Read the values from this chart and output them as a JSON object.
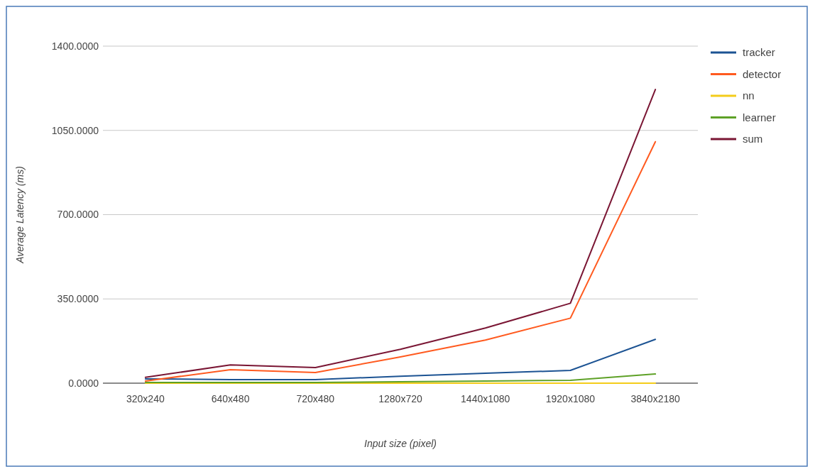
{
  "chart_data": {
    "type": "line",
    "xlabel": "Input size (pixel)",
    "ylabel": "Average Latency (ms)",
    "categories": [
      "320x240",
      "640x480",
      "720x480",
      "1280x720",
      "1440x1080",
      "1920x1080",
      "3840x2180"
    ],
    "series": [
      {
        "name": "tracker",
        "color": "#1c5393",
        "values": [
          18,
          15,
          15,
          29,
          41,
          53,
          182
        ]
      },
      {
        "name": "detector",
        "color": "#ff5a1f",
        "values": [
          9,
          56,
          44,
          109,
          179,
          270,
          1003
        ]
      },
      {
        "name": "nn",
        "color": "#f4cc1a",
        "values": [
          0,
          0,
          0,
          0,
          0,
          0,
          0
        ]
      },
      {
        "name": "learner",
        "color": "#5ea127",
        "values": [
          3,
          3,
          3,
          6,
          9,
          12,
          38
        ]
      },
      {
        "name": "sum",
        "color": "#7a1634",
        "values": [
          24,
          76,
          65,
          141,
          229,
          332,
          1220
        ]
      }
    ],
    "ylim": [
      0,
      1400
    ],
    "yticks": [
      {
        "value": 0,
        "label": "0.0000"
      },
      {
        "value": 350,
        "label": "350.0000"
      },
      {
        "value": 700,
        "label": "700.0000"
      },
      {
        "value": 1050,
        "label": "1050.0000"
      },
      {
        "value": 1400,
        "label": "1400.0000"
      }
    ],
    "grid": "y",
    "legend": "right"
  }
}
